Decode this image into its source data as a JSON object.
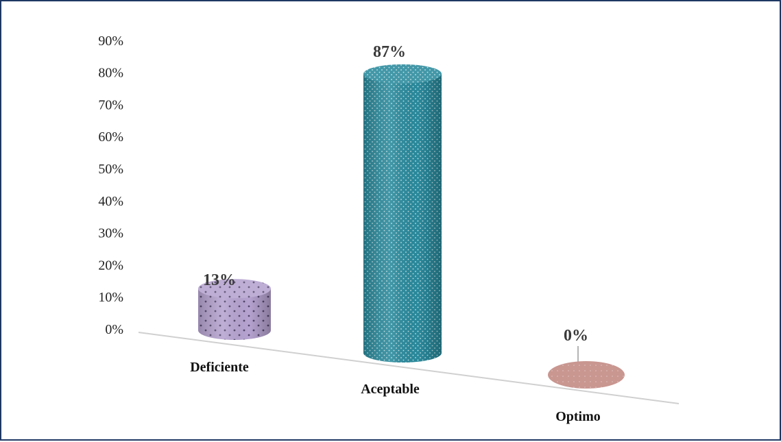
{
  "chart_data": {
    "type": "bar",
    "style": "3d-cylinder",
    "categories": [
      "Deficiente",
      "Aceptable",
      "Optimo"
    ],
    "values": [
      13,
      87,
      0
    ],
    "data_labels": [
      "13%",
      "87%",
      "0%"
    ],
    "colors": [
      "#b6a3d0",
      "#2a8a9c",
      "#c99690"
    ],
    "ylim": [
      0,
      90
    ],
    "y_ticks": [
      "0%",
      "10%",
      "20%",
      "30%",
      "40%",
      "50%",
      "60%",
      "70%",
      "80%",
      "90%"
    ],
    "grid": false,
    "legend": "none"
  }
}
